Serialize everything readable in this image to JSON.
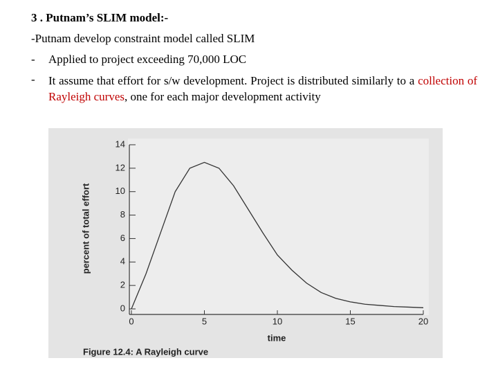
{
  "heading": "3 . Putnam’s SLIM model:-",
  "intro": "-Putnam develop constraint model called SLIM",
  "bullet_marker": "-",
  "bullets": [
    {
      "before": "Applied to project exceeding 70,000 LOC"
    },
    {
      "before": "It assume that effort for s/w development. Project is distributed similarly to a",
      "highlight": "collection of Rayleigh curves",
      "after": ", one for each major development activity"
    }
  ],
  "chart_data": {
    "type": "line",
    "x": [
      0,
      1,
      2,
      3,
      4,
      5,
      6,
      7,
      8,
      9,
      10,
      11,
      12,
      13,
      14,
      15,
      16,
      17,
      18,
      19,
      20
    ],
    "values": [
      0,
      3,
      6.5,
      10,
      12,
      12.5,
      12,
      10.5,
      8.5,
      6.5,
      4.6,
      3.3,
      2.2,
      1.4,
      0.9,
      0.6,
      0.4,
      0.3,
      0.2,
      0.15,
      0.1
    ],
    "color": "#333333",
    "xlim": [
      0,
      20
    ],
    "xticks": [
      0,
      5,
      10,
      15,
      20
    ],
    "ylim": [
      0,
      14
    ],
    "yticks": [
      0,
      2,
      4,
      6,
      8,
      10,
      12,
      14
    ],
    "xlabel": "time",
    "ylabel": "percent of total effort",
    "caption": "Figure 12.4: A Rayleigh curve"
  }
}
